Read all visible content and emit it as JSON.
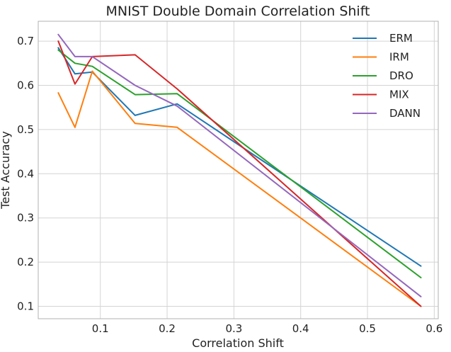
{
  "chart_data": {
    "type": "line",
    "title": "MNIST Double Domain Correlation Shift",
    "xlabel": "Correlation Shift",
    "ylabel": "Test Accuracy",
    "xlim": [
      0.007,
      0.606
    ],
    "ylim": [
      0.072,
      0.745
    ],
    "xticks": [
      0.1,
      0.2,
      0.3,
      0.4,
      0.5,
      0.6
    ],
    "xtick_labels": [
      "0.1",
      "0.2",
      "0.3",
      "0.4",
      "0.5",
      "0.6"
    ],
    "yticks": [
      0.1,
      0.2,
      0.3,
      0.4,
      0.5,
      0.6,
      0.7
    ],
    "ytick_labels": [
      "0.1",
      "0.2",
      "0.3",
      "0.4",
      "0.5",
      "0.6",
      "0.7"
    ],
    "grid": true,
    "legend_position": "top-right",
    "x": [
      0.037,
      0.062,
      0.088,
      0.152,
      0.215,
      0.58
    ],
    "series": [
      {
        "name": "ERM",
        "color": "#1f77b4",
        "values": [
          0.685,
          0.626,
          0.63,
          0.532,
          0.558,
          0.191
        ]
      },
      {
        "name": "IRM",
        "color": "#ff7f0e",
        "values": [
          0.583,
          0.505,
          0.632,
          0.514,
          0.505,
          0.1
        ]
      },
      {
        "name": "DRO",
        "color": "#2ca02c",
        "values": [
          0.68,
          0.65,
          0.643,
          0.579,
          0.581,
          0.165
        ]
      },
      {
        "name": "MIX",
        "color": "#d62728",
        "values": [
          0.7,
          0.603,
          0.665,
          0.669,
          0.592,
          0.1
        ]
      },
      {
        "name": "DANN",
        "color": "#9467bd",
        "values": [
          0.715,
          0.665,
          0.665,
          0.6,
          0.553,
          0.122
        ]
      }
    ]
  }
}
